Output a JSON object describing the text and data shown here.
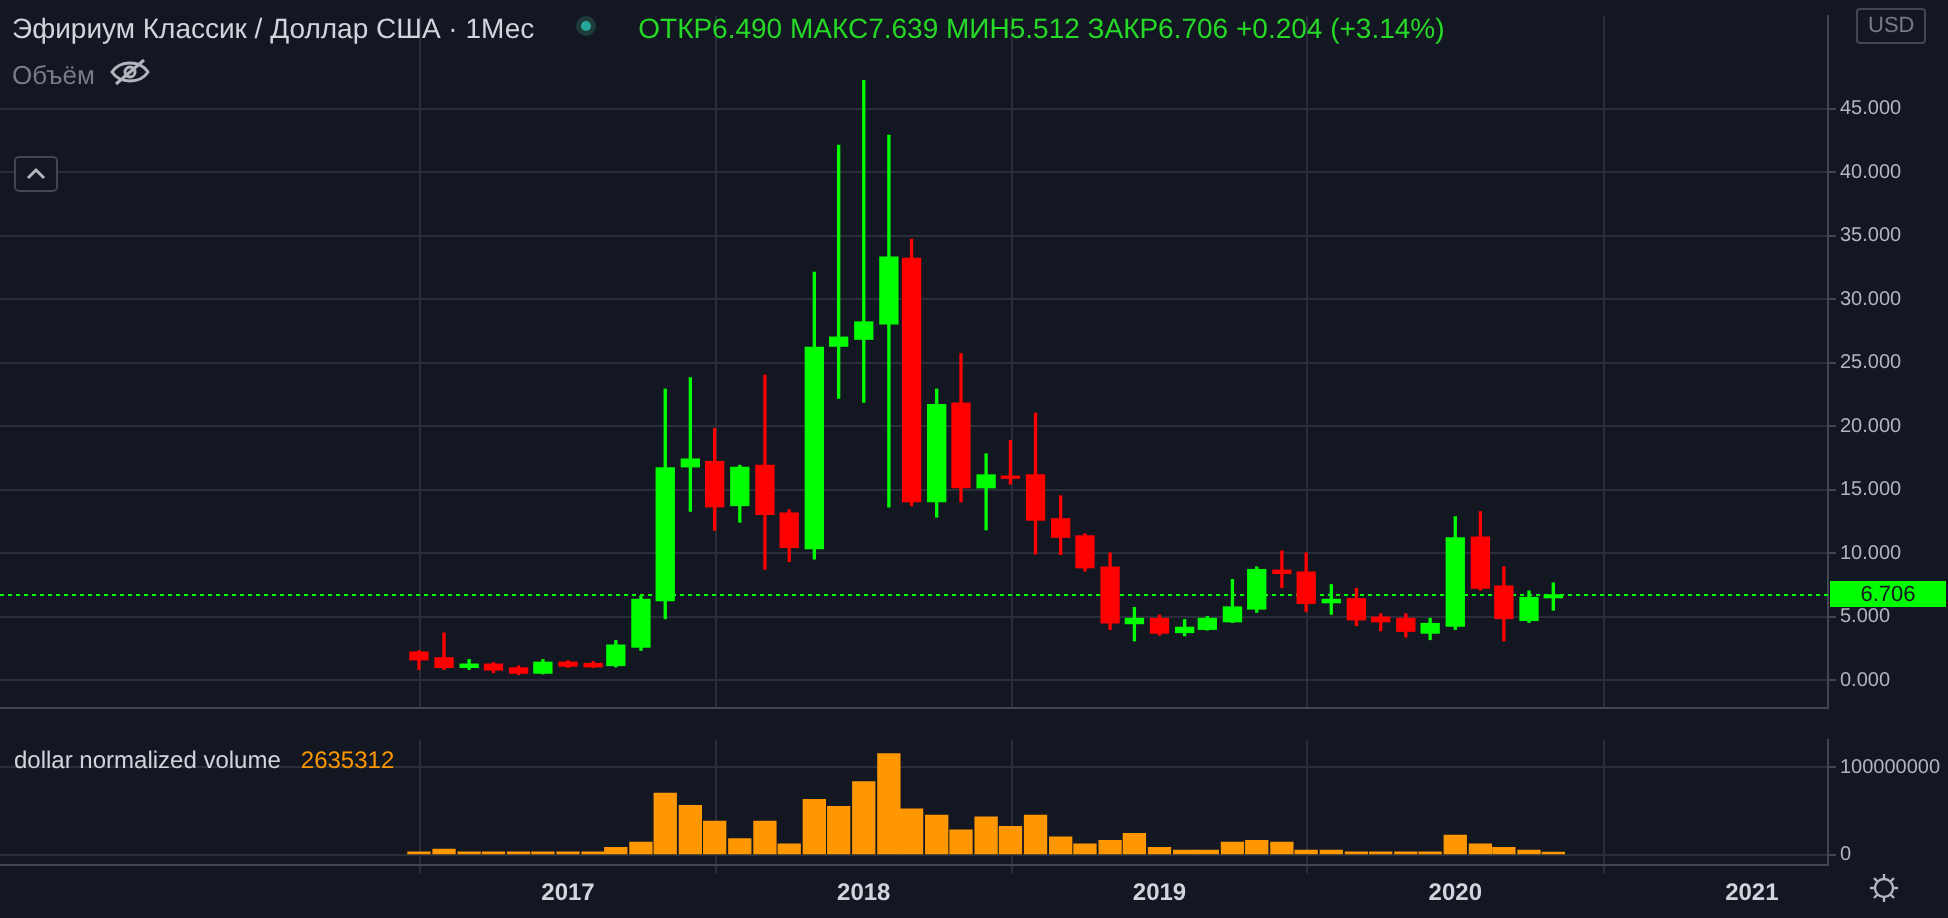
{
  "chart_data": [
    {
      "type": "candlestick",
      "title": "Эфириум Классик / Доллар США · 1Мес",
      "annotations": [
        "ОТКР6.490 МАКС7.639 МИН5.512 ЗАКР6.706 +0.204 (+3.14%)",
        "Объём",
        "USD"
      ],
      "x": [
        "2016-07",
        "2016-08",
        "2016-09",
        "2016-10",
        "2016-11",
        "2016-12",
        "2017-01",
        "2017-02",
        "2017-03",
        "2017-04",
        "2017-05",
        "2017-06",
        "2017-07",
        "2017-08",
        "2017-09",
        "2017-10",
        "2017-11",
        "2017-12",
        "2018-01",
        "2018-02",
        "2018-03",
        "2018-04",
        "2018-05",
        "2018-06",
        "2018-07",
        "2018-08",
        "2018-09",
        "2018-10",
        "2018-11",
        "2018-12",
        "2019-01",
        "2019-02",
        "2019-03",
        "2019-04",
        "2019-05",
        "2019-06",
        "2019-07",
        "2019-08",
        "2019-09",
        "2019-10",
        "2019-11",
        "2019-12",
        "2020-01",
        "2020-02",
        "2020-03",
        "2020-04",
        "2020-05"
      ],
      "ohlc": [
        [
          2.2,
          2.3,
          0.85,
          1.6
        ],
        [
          1.75,
          3.7,
          0.85,
          1.0
        ],
        [
          1.0,
          1.6,
          0.85,
          1.25
        ],
        [
          1.25,
          1.35,
          0.6,
          0.8
        ],
        [
          0.95,
          1.1,
          0.45,
          0.55
        ],
        [
          0.55,
          1.6,
          0.5,
          1.4
        ],
        [
          1.4,
          1.5,
          1.0,
          1.1
        ],
        [
          1.3,
          1.45,
          1.0,
          1.05
        ],
        [
          1.15,
          3.1,
          1.05,
          2.75
        ],
        [
          2.6,
          6.6,
          2.35,
          6.35
        ],
        [
          6.25,
          22.9,
          4.85,
          16.7
        ],
        [
          16.8,
          23.8,
          13.3,
          17.4
        ],
        [
          17.2,
          19.8,
          11.8,
          13.65
        ],
        [
          13.75,
          16.9,
          12.45,
          16.75
        ],
        [
          16.9,
          24.0,
          8.75,
          13.05
        ],
        [
          13.15,
          13.4,
          9.35,
          10.45
        ],
        [
          10.35,
          32.1,
          9.55,
          26.2
        ],
        [
          26.3,
          42.1,
          22.2,
          27.0
        ],
        [
          26.85,
          47.2,
          21.9,
          28.2
        ],
        [
          28.05,
          42.9,
          13.65,
          33.3
        ],
        [
          33.2,
          34.7,
          13.75,
          14.05
        ],
        [
          14.05,
          22.9,
          12.85,
          21.7
        ],
        [
          21.8,
          25.7,
          14.05,
          15.15
        ],
        [
          15.15,
          17.8,
          11.85,
          16.15
        ],
        [
          16.05,
          18.85,
          15.45,
          15.9
        ],
        [
          16.15,
          21.0,
          9.95,
          12.6
        ],
        [
          12.7,
          14.5,
          9.9,
          11.25
        ],
        [
          11.35,
          11.5,
          8.6,
          8.85
        ],
        [
          8.9,
          10.0,
          4.0,
          4.5
        ],
        [
          4.45,
          5.7,
          3.1,
          4.85
        ],
        [
          4.85,
          5.1,
          3.55,
          3.7
        ],
        [
          3.75,
          4.75,
          3.5,
          4.15
        ],
        [
          4.0,
          5.0,
          3.95,
          4.85
        ],
        [
          4.6,
          7.9,
          4.55,
          5.75
        ],
        [
          5.6,
          8.9,
          5.35,
          8.7
        ],
        [
          8.65,
          10.15,
          7.3,
          8.4
        ],
        [
          8.5,
          10.0,
          5.4,
          6.05
        ],
        [
          6.1,
          7.5,
          5.2,
          6.35
        ],
        [
          6.4,
          7.2,
          4.3,
          4.75
        ],
        [
          4.95,
          5.2,
          3.9,
          4.6
        ],
        [
          4.85,
          5.2,
          3.4,
          3.85
        ],
        [
          3.7,
          4.85,
          3.2,
          4.45
        ],
        [
          4.25,
          12.85,
          4.0,
          11.2
        ],
        [
          11.25,
          13.25,
          7.1,
          7.25
        ],
        [
          7.4,
          8.9,
          3.1,
          4.85
        ],
        [
          4.7,
          7.0,
          4.55,
          6.502
        ],
        [
          6.49,
          7.639,
          5.512,
          6.706
        ]
      ],
      "colors": [
        "#ff0000",
        "#ff0000",
        "#00ff00",
        "#ff0000",
        "#ff0000",
        "#00ff00",
        "#ff0000",
        "#ff0000",
        "#00ff00",
        "#00ff00",
        "#00ff00",
        "#00ff00",
        "#ff0000",
        "#00ff00",
        "#ff0000",
        "#ff0000",
        "#00ff00",
        "#00ff00",
        "#00ff00",
        "#00ff00",
        "#ff0000",
        "#00ff00",
        "#ff0000",
        "#00ff00",
        "#ff0000",
        "#ff0000",
        "#ff0000",
        "#ff0000",
        "#ff0000",
        "#00ff00",
        "#ff0000",
        "#00ff00",
        "#00ff00",
        "#00ff00",
        "#00ff00",
        "#ff0000",
        "#ff0000",
        "#00ff00",
        "#ff0000",
        "#ff0000",
        "#ff0000",
        "#00ff00",
        "#00ff00",
        "#ff0000",
        "#ff0000",
        "#00ff00",
        "#00ff00"
      ],
      "xlim": [
        "2015-01-31",
        "2021-04-05"
      ],
      "xticks": [
        "2017",
        "2018",
        "2019",
        "2020",
        "2021"
      ],
      "ylim": [
        -2.2,
        52.3
      ],
      "yticks": [
        {
          "value": 0,
          "label": "0.000"
        },
        {
          "value": 5,
          "label": "5.000"
        },
        {
          "value": 10,
          "label": "10.000"
        },
        {
          "value": 15,
          "label": "15.000"
        },
        {
          "value": 20,
          "label": "20.000"
        },
        {
          "value": 25,
          "label": "25.000"
        },
        {
          "value": 30,
          "label": "30.000"
        },
        {
          "value": 35,
          "label": "35.000"
        },
        {
          "value": 40,
          "label": "40.000"
        },
        {
          "value": 45,
          "label": "45.000"
        }
      ],
      "ref_lines": [
        {
          "axis": "y",
          "value": 6.706,
          "label": "6.706",
          "color": "#00ff00",
          "line_style": "dotted"
        }
      ],
      "grid": true,
      "legend": false,
      "tick_labels": "y"
    },
    {
      "type": "bar",
      "title": "dollar normalized volume",
      "annotations": [
        "2635312"
      ],
      "color": "#ff9800",
      "x": [
        "2016-07",
        "2016-08",
        "2016-09",
        "2016-10",
        "2016-11",
        "2016-12",
        "2017-01",
        "2017-02",
        "2017-03",
        "2017-04",
        "2017-05",
        "2017-06",
        "2017-07",
        "2017-08",
        "2017-09",
        "2017-10",
        "2017-11",
        "2017-12",
        "2018-01",
        "2018-02",
        "2018-03",
        "2018-04",
        "2018-05",
        "2018-06",
        "2018-07",
        "2018-08",
        "2018-09",
        "2018-10",
        "2018-11",
        "2018-12",
        "2019-01",
        "2019-02",
        "2019-03",
        "2019-04",
        "2019-05",
        "2019-06",
        "2019-07",
        "2019-08",
        "2019-09",
        "2019-10",
        "2019-11",
        "2019-12",
        "2020-01",
        "2020-02",
        "2020-03",
        "2020-04",
        "2020-05"
      ],
      "values": [
        3000000,
        6000000,
        3000000,
        3000000,
        3000000,
        3000000,
        3000000,
        3000000,
        8000000,
        14000000,
        70000000,
        56000000,
        38000000,
        18000000,
        38000000,
        12000000,
        63000000,
        55000000,
        83000000,
        115000000,
        52000000,
        45000000,
        28000000,
        43000000,
        32000000,
        45000000,
        20000000,
        12000000,
        16000000,
        24000000,
        8000000,
        5000000,
        5000000,
        14000000,
        16000000,
        14000000,
        5000000,
        5000000,
        3000000,
        3000000,
        3000000,
        3000000,
        22000000,
        12000000,
        8000000,
        5000000,
        2635312
      ],
      "xlim": [
        "2015-01-31",
        "2021-04-05"
      ],
      "xticks": [
        "2017",
        "2018",
        "2019",
        "2020",
        "2021"
      ],
      "ylim": [
        -12000000,
        131000000
      ],
      "yticks": [
        0,
        100000000
      ],
      "grid": true,
      "legend": false
    }
  ]
}
